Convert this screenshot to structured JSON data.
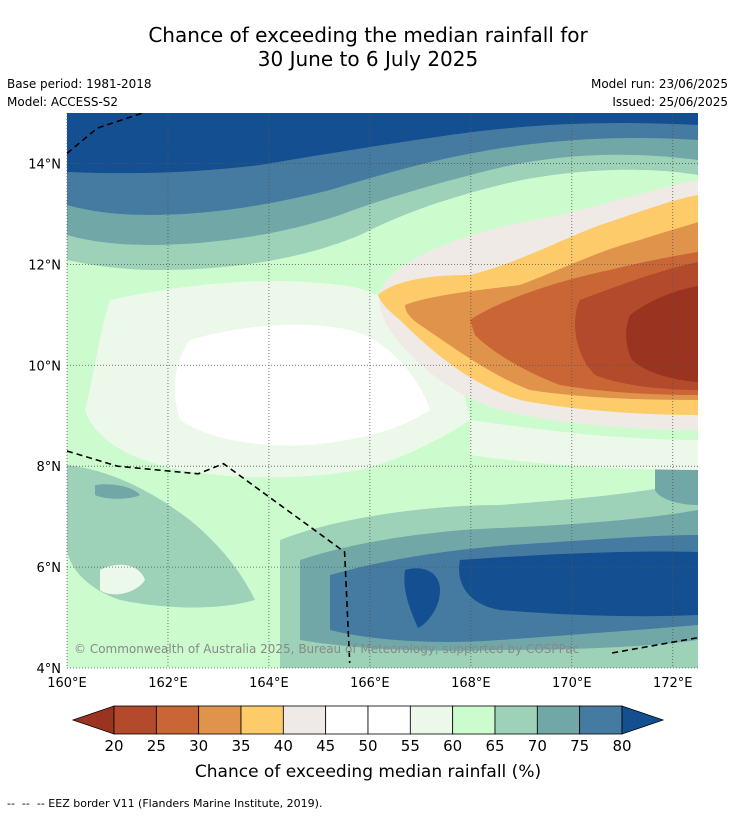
{
  "title": {
    "line1": "Chance of exceeding the median rainfall for",
    "line2": "30 June to 6 July 2025"
  },
  "meta": {
    "base_period": "Base period: 1981-2018",
    "model": "Model: ACCESS-S2",
    "model_run": "Model run: 23/06/2025",
    "issued": "Issued: 25/06/2025"
  },
  "map": {
    "lon_range": [
      160,
      172.5
    ],
    "lat_range": [
      4,
      15
    ],
    "lon_ticks": [
      "160°E",
      "162°E",
      "164°E",
      "166°E",
      "168°E",
      "170°E",
      "172°E"
    ],
    "lat_ticks": [
      "4°N",
      "6°N",
      "8°N",
      "10°N",
      "12°N",
      "14°N"
    ],
    "lon_tick_values": [
      160,
      162,
      164,
      166,
      168,
      170,
      172
    ],
    "lat_tick_values": [
      4,
      6,
      8,
      10,
      12,
      14
    ],
    "copyright": "© Commonwealth of Australia 2025, Bureau of Meteorology, supported by COSPPac",
    "eez_border": [
      [
        160,
        8.3
      ],
      [
        161,
        8.0
      ],
      [
        162.6,
        7.85
      ],
      [
        163.1,
        8.05
      ],
      [
        165.5,
        6.3
      ],
      [
        165.6,
        4.1
      ]
    ],
    "eez_border_north": [
      [
        160,
        14.2
      ],
      [
        160.6,
        14.7
      ],
      [
        161.5,
        15
      ]
    ],
    "eez_border_east": [
      [
        170.8,
        4.3
      ],
      [
        172.5,
        4.6
      ]
    ]
  },
  "colorbar": {
    "title": "Chance of exceeding median rainfall (%)",
    "tick_labels": [
      "20",
      "25",
      "30",
      "35",
      "40",
      "45",
      "50",
      "55",
      "60",
      "65",
      "70",
      "75",
      "80"
    ],
    "colors": [
      "#9a3320",
      "#b24a2b",
      "#ca6535",
      "#e0934a",
      "#fecb6a",
      "#f0eae6",
      "#ffffff",
      "#ffffff",
      "#ecf8ea",
      "#ccfcce",
      "#9dd1b8",
      "#71a8a7",
      "#457ba1",
      "#145091"
    ]
  },
  "footer": "--  --  -- EEZ border V11 (Flanders Marine Institute, 2019)."
}
